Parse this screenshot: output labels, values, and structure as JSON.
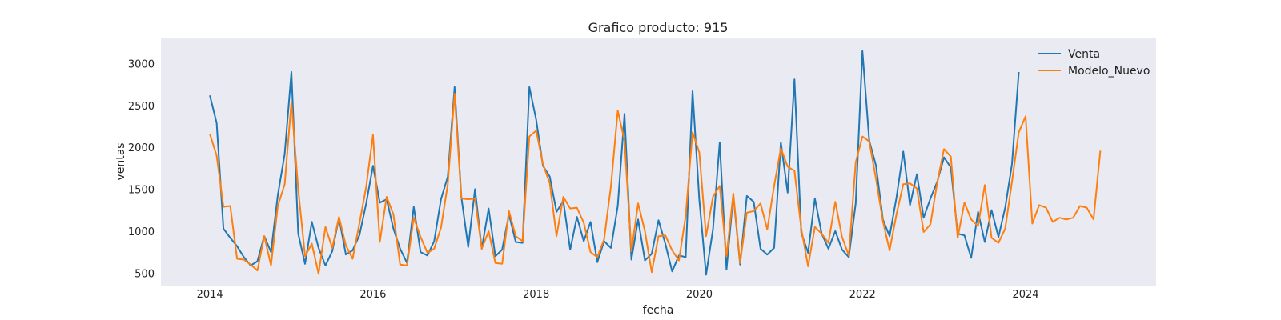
{
  "chart_data": {
    "type": "line",
    "title": "Grafico producto: 915",
    "xlabel": "fecha",
    "ylabel": "ventas",
    "x_unit": "year",
    "xlim": [
      2013.4,
      2025.6
    ],
    "ylim": [
      350,
      3300
    ],
    "xticks": [
      2014,
      2016,
      2018,
      2020,
      2022,
      2024
    ],
    "yticks": [
      500,
      1000,
      1500,
      2000,
      2500,
      3000
    ],
    "grid": false,
    "legend_position": "top-right",
    "background_color": "#EAEAF2",
    "series": [
      {
        "name": "Venta",
        "color": "#1F77B4",
        "x": [
          2014.0,
          2014.083,
          2014.167,
          2014.25,
          2014.333,
          2014.417,
          2014.5,
          2014.583,
          2014.667,
          2014.75,
          2014.833,
          2014.917,
          2015.0,
          2015.083,
          2015.167,
          2015.25,
          2015.333,
          2015.417,
          2015.5,
          2015.583,
          2015.667,
          2015.75,
          2015.833,
          2015.917,
          2016.0,
          2016.083,
          2016.167,
          2016.25,
          2016.333,
          2016.417,
          2016.5,
          2016.583,
          2016.667,
          2016.75,
          2016.833,
          2016.917,
          2017.0,
          2017.083,
          2017.167,
          2017.25,
          2017.333,
          2017.417,
          2017.5,
          2017.583,
          2017.667,
          2017.75,
          2017.833,
          2017.917,
          2018.0,
          2018.083,
          2018.167,
          2018.25,
          2018.333,
          2018.417,
          2018.5,
          2018.583,
          2018.667,
          2018.75,
          2018.833,
          2018.917,
          2019.0,
          2019.083,
          2019.167,
          2019.25,
          2019.333,
          2019.417,
          2019.5,
          2019.583,
          2019.667,
          2019.75,
          2019.833,
          2019.917,
          2020.0,
          2020.083,
          2020.167,
          2020.25,
          2020.333,
          2020.417,
          2020.5,
          2020.583,
          2020.667,
          2020.75,
          2020.833,
          2020.917,
          2021.0,
          2021.083,
          2021.167,
          2021.25,
          2021.333,
          2021.417,
          2021.5,
          2021.583,
          2021.667,
          2021.75,
          2021.833,
          2021.917,
          2022.0,
          2022.083,
          2022.167,
          2022.25,
          2022.333,
          2022.417,
          2022.5,
          2022.583,
          2022.667,
          2022.75,
          2022.833,
          2022.917,
          2023.0,
          2023.083,
          2023.167,
          2023.25,
          2023.333,
          2023.417,
          2023.5,
          2023.583,
          2023.667,
          2023.75,
          2023.833,
          2023.917
        ],
        "y": [
          2620,
          2290,
          1030,
          920,
          820,
          690,
          590,
          640,
          940,
          750,
          1430,
          1920,
          2900,
          970,
          610,
          1110,
          800,
          590,
          760,
          1160,
          720,
          770,
          950,
          1330,
          1780,
          1340,
          1380,
          1030,
          790,
          620,
          1290,
          750,
          710,
          880,
          1380,
          1650,
          2720,
          1410,
          810,
          1500,
          790,
          1270,
          700,
          780,
          1200,
          870,
          860,
          2720,
          2330,
          1780,
          1650,
          1230,
          1360,
          780,
          1170,
          880,
          1110,
          630,
          880,
          800,
          1300,
          2400,
          660,
          1140,
          650,
          730,
          1130,
          850,
          520,
          710,
          690,
          2670,
          1380,
          480,
          1020,
          2060,
          540,
          1430,
          600,
          1420,
          1350,
          790,
          720,
          800,
          2060,
          1460,
          2810,
          980,
          740,
          1390,
          970,
          790,
          1000,
          780,
          690,
          1330,
          3150,
          2080,
          1780,
          1140,
          940,
          1400,
          1950,
          1310,
          1680,
          1160,
          1390,
          1590,
          1880,
          1760,
          970,
          950,
          680,
          1230,
          870,
          1250,
          930,
          1280,
          1800,
          2900
        ]
      },
      {
        "name": "Modelo_Nuevo",
        "color": "#FF7F0E",
        "x": [
          2014.0,
          2014.083,
          2014.167,
          2014.25,
          2014.333,
          2014.417,
          2014.5,
          2014.583,
          2014.667,
          2014.75,
          2014.833,
          2014.917,
          2015.0,
          2015.083,
          2015.167,
          2015.25,
          2015.333,
          2015.417,
          2015.5,
          2015.583,
          2015.667,
          2015.75,
          2015.833,
          2015.917,
          2016.0,
          2016.083,
          2016.167,
          2016.25,
          2016.333,
          2016.417,
          2016.5,
          2016.583,
          2016.667,
          2016.75,
          2016.833,
          2016.917,
          2017.0,
          2017.083,
          2017.167,
          2017.25,
          2017.333,
          2017.417,
          2017.5,
          2017.583,
          2017.667,
          2017.75,
          2017.833,
          2017.917,
          2018.0,
          2018.083,
          2018.167,
          2018.25,
          2018.333,
          2018.417,
          2018.5,
          2018.583,
          2018.667,
          2018.75,
          2018.833,
          2018.917,
          2019.0,
          2019.083,
          2019.167,
          2019.25,
          2019.333,
          2019.417,
          2019.5,
          2019.583,
          2019.667,
          2019.75,
          2019.833,
          2019.917,
          2020.0,
          2020.083,
          2020.167,
          2020.25,
          2020.333,
          2020.417,
          2020.5,
          2020.583,
          2020.667,
          2020.75,
          2020.833,
          2020.917,
          2021.0,
          2021.083,
          2021.167,
          2021.25,
          2021.333,
          2021.417,
          2021.5,
          2021.583,
          2021.667,
          2021.75,
          2021.833,
          2021.917,
          2022.0,
          2022.083,
          2022.167,
          2022.25,
          2022.333,
          2022.417,
          2022.5,
          2022.583,
          2022.667,
          2022.75,
          2022.833,
          2022.917,
          2023.0,
          2023.083,
          2023.167,
          2023.25,
          2023.333,
          2023.417,
          2023.5,
          2023.583,
          2023.667,
          2023.75,
          2023.833,
          2023.917,
          2024.0,
          2024.083,
          2024.167,
          2024.25,
          2024.333,
          2024.417,
          2024.5,
          2024.583,
          2024.667,
          2024.75,
          2024.833,
          2024.917
        ],
        "y": [
          2160,
          1900,
          1290,
          1300,
          670,
          660,
          600,
          530,
          940,
          590,
          1300,
          1560,
          2540,
          1500,
          700,
          850,
          490,
          1050,
          800,
          1170,
          830,
          670,
          1090,
          1530,
          2150,
          870,
          1410,
          1200,
          600,
          590,
          1160,
          930,
          740,
          790,
          1040,
          1560,
          2640,
          1390,
          1380,
          1390,
          790,
          1000,
          620,
          610,
          1240,
          940,
          880,
          2130,
          2200,
          1800,
          1570,
          940,
          1410,
          1270,
          1280,
          1100,
          750,
          690,
          900,
          1540,
          2440,
          2080,
          760,
          1330,
          1000,
          510,
          940,
          950,
          770,
          650,
          1180,
          2180,
          1940,
          940,
          1410,
          1540,
          700,
          1450,
          620,
          1220,
          1240,
          1330,
          1020,
          1540,
          1990,
          1770,
          1720,
          1030,
          580,
          1050,
          970,
          860,
          1350,
          930,
          710,
          1820,
          2130,
          2070,
          1620,
          1120,
          770,
          1200,
          1560,
          1570,
          1510,
          990,
          1080,
          1580,
          1980,
          1890,
          920,
          1340,
          1140,
          1060,
          1550,
          920,
          860,
          1030,
          1590,
          2180,
          2370,
          1090,
          1310,
          1280,
          1110,
          1160,
          1140,
          1160,
          1300,
          1280,
          1140,
          1960
        ]
      }
    ]
  }
}
